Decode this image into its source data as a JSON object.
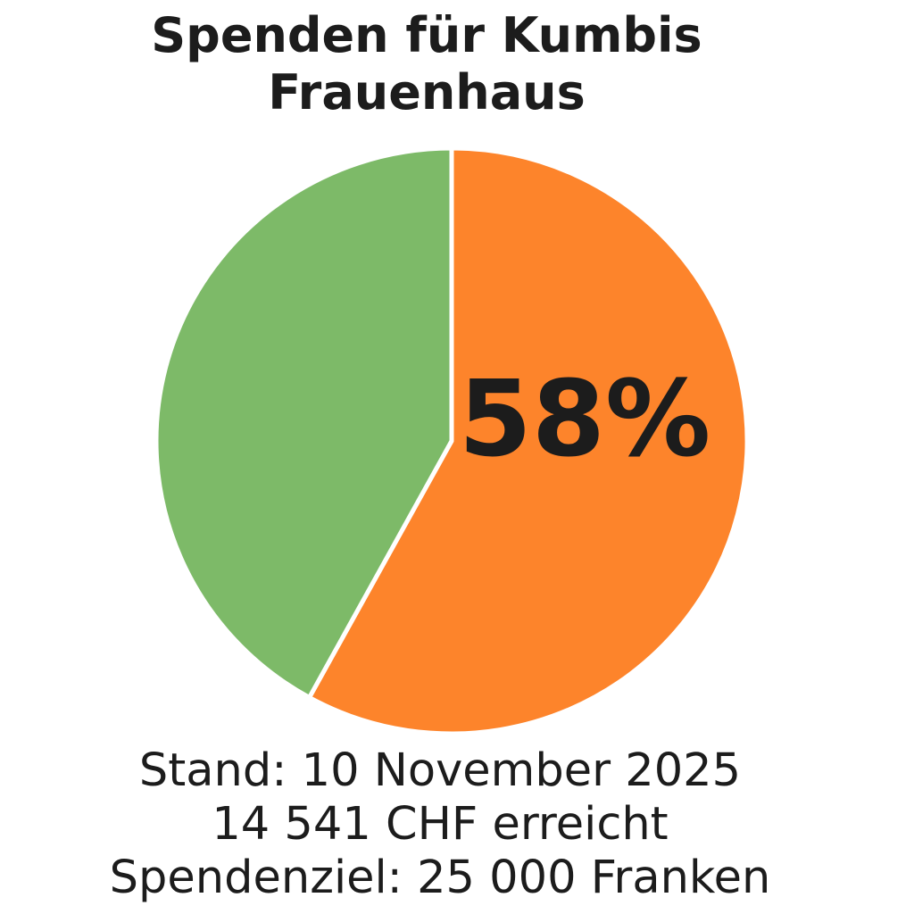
{
  "chart_data": {
    "type": "pie",
    "title_line1": "Spenden für Kumbis",
    "title_line2": "Frauenhaus",
    "slices": [
      {
        "value": 58,
        "color": "#FD842B"
      },
      {
        "value": 42,
        "color": "#7DBA68"
      }
    ],
    "percent_label": "58%",
    "start_angle": "12 o'clock, clockwise"
  },
  "footer": {
    "date_line": "Stand: 10  November 2025",
    "amount_line": "14 541 CHF erreicht",
    "goal_line": "Spendenziel: 25 000 Franken"
  }
}
